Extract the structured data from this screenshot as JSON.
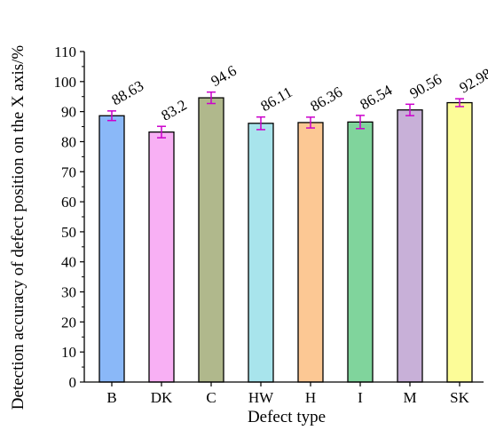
{
  "chart_data": {
    "type": "bar",
    "title": "",
    "xlabel": "Defect type",
    "ylabel": "Detection accuracy of defect position on the X axis/%",
    "categories": [
      "B",
      "DK",
      "C",
      "HW",
      "H",
      "I",
      "M",
      "SK"
    ],
    "values": [
      88.63,
      83.2,
      94.6,
      86.11,
      86.36,
      86.54,
      90.56,
      92.98
    ],
    "value_labels": [
      "88.63",
      "83.2",
      "94.6",
      "86.11",
      "86.36",
      "86.54",
      "90.56",
      "92.98"
    ],
    "errors": [
      1.6,
      1.9,
      1.9,
      2.1,
      1.8,
      2.2,
      1.9,
      1.3
    ],
    "bar_colors": [
      "#8ab8f8",
      "#f8b0f4",
      "#b0b88c",
      "#a8e4ec",
      "#fcc894",
      "#80d49c",
      "#c8b0d8",
      "#fcfc98"
    ],
    "bar_edge_color": "#000000",
    "error_bar_color": "#cc00cc",
    "ylim": [
      0,
      110
    ],
    "yticks": [
      0,
      10,
      20,
      30,
      40,
      50,
      60,
      70,
      80,
      90,
      100,
      110
    ],
    "grid": false,
    "legend": "none"
  }
}
